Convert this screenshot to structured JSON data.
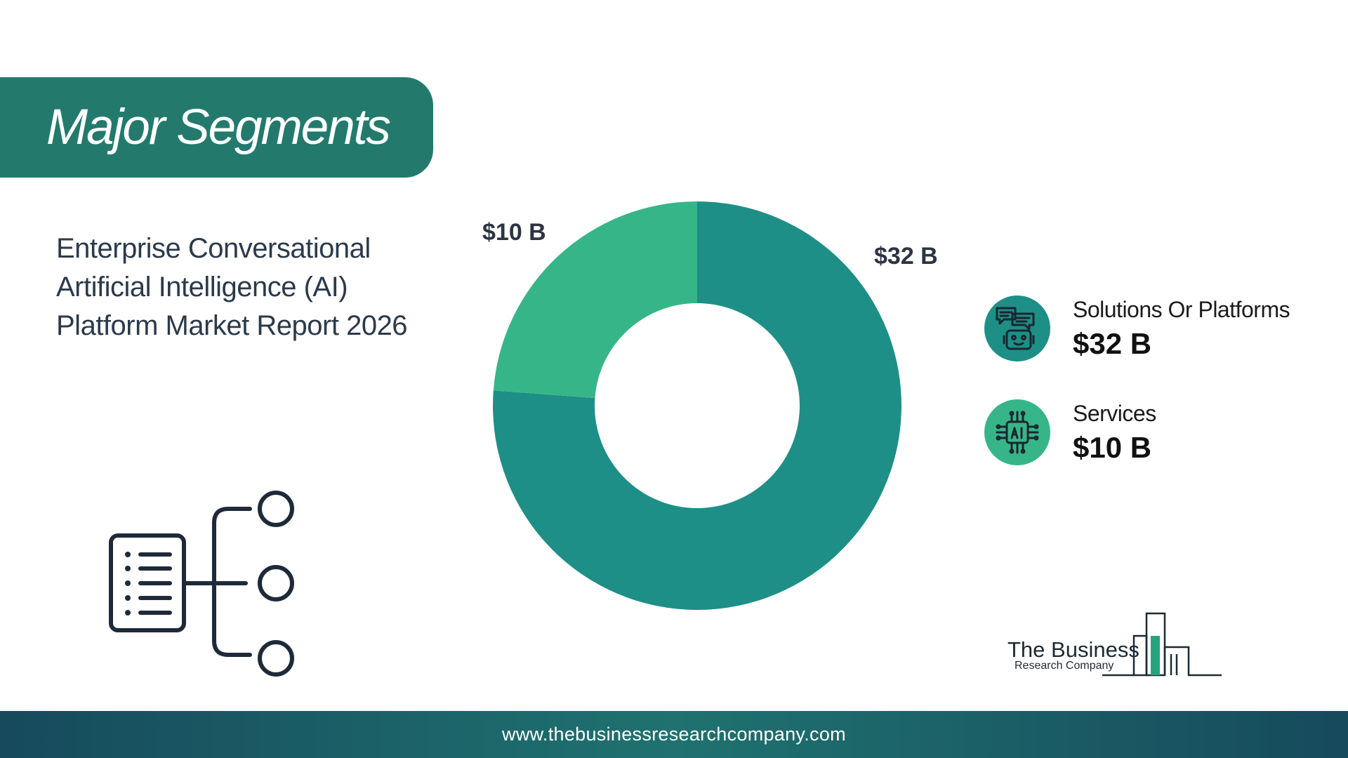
{
  "banner": {
    "title": "Major Segments"
  },
  "report": {
    "title": "Enterprise Conversational Artificial Intelligence (AI) Platform Market Report 2026"
  },
  "chart_data": {
    "type": "pie",
    "variant": "donut",
    "categories": [
      "Solutions Or Platforms",
      "Services"
    ],
    "values": [
      32,
      10
    ],
    "labels": [
      "$32 B",
      "$10 B"
    ],
    "colors": [
      "#1e8f86",
      "#36b688"
    ],
    "unit": "$ B"
  },
  "legend": {
    "items": [
      {
        "name": "Solutions Or Platforms",
        "value": "$32 B",
        "color": "#1e8f86",
        "icon": "chatbot-icon"
      },
      {
        "name": "Services",
        "value": "$10 B",
        "color": "#36b688",
        "icon": "ai-chip-icon"
      }
    ]
  },
  "logo": {
    "line1": "The Business",
    "line2": "Research Company"
  },
  "footer": {
    "url": "www.thebusinessresearchcompany.com"
  }
}
